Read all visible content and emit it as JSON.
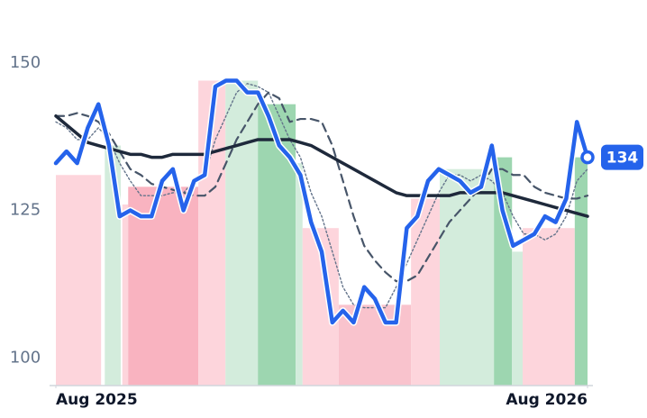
{
  "chart_data": {
    "type": "line",
    "x": [
      0,
      2,
      4,
      6,
      8,
      10,
      12,
      14,
      16,
      18,
      20,
      22,
      24,
      26,
      28,
      30,
      32,
      34,
      36,
      38,
      40,
      42,
      44,
      46,
      48,
      50,
      52,
      54,
      56,
      58,
      60,
      62,
      64,
      66,
      68,
      70,
      72,
      74,
      76,
      78,
      80,
      82,
      84,
      86,
      88,
      90,
      92,
      94,
      96,
      98,
      100
    ],
    "xlim": [
      0,
      100
    ],
    "xticks": [
      {
        "value": 0,
        "label": "Aug 2025"
      },
      {
        "value": 100,
        "label": "Aug 2026"
      }
    ],
    "ylim": [
      95,
      157
    ],
    "yticks": [
      100,
      125,
      150
    ],
    "series": [
      {
        "color": "#2563eb",
        "style": "solid",
        "values": [
          133,
          135,
          133,
          139,
          143,
          136,
          124,
          125,
          124,
          124,
          130,
          132,
          125,
          130,
          131,
          146,
          147,
          147,
          145,
          145,
          141,
          136,
          134,
          131,
          123,
          118,
          106,
          108,
          106,
          112,
          110,
          106,
          106,
          122,
          124,
          130,
          132,
          131,
          130,
          128,
          129,
          136,
          125,
          119,
          120,
          121,
          124,
          123,
          127,
          140,
          134
        ]
      },
      {
        "color": "#1e293b",
        "style": "thick",
        "values": [
          141,
          139.5,
          138,
          136.5,
          136,
          135.5,
          135,
          134.5,
          134.5,
          134,
          134,
          134.5,
          134.5,
          134.5,
          134.5,
          135,
          135.5,
          136,
          136.5,
          137,
          137,
          137,
          137,
          136.5,
          136,
          135,
          134,
          133,
          132,
          131,
          130,
          129,
          128,
          127.5,
          127.5,
          127.5,
          127.5,
          127.5,
          128,
          128,
          128,
          128,
          128,
          127.5,
          127,
          126.5,
          126,
          125.5,
          125,
          124.5,
          124
        ]
      },
      {
        "color": "#475569",
        "style": "dashed",
        "values": [
          141,
          141,
          141.5,
          141,
          140,
          138,
          135,
          132,
          131,
          129.5,
          129,
          128.5,
          128,
          127.5,
          127.5,
          129,
          133,
          137,
          140,
          143,
          145,
          144,
          140,
          140.5,
          140.5,
          140,
          136,
          130,
          124,
          119,
          116.5,
          114.5,
          113,
          113,
          114,
          117,
          120,
          123,
          125,
          127,
          129,
          132,
          132,
          131,
          131,
          129,
          128,
          127.5,
          127,
          127,
          127.5
        ]
      },
      {
        "color": "#64748b",
        "style": "dotted",
        "values": [
          140,
          139,
          137,
          137,
          139,
          137,
          133,
          130,
          127.5,
          127.5,
          127.5,
          128,
          128,
          130,
          131,
          137,
          141,
          145,
          146.5,
          146,
          145,
          141,
          137,
          134,
          128,
          124,
          118,
          112,
          109,
          108.5,
          108.5,
          108.5,
          112,
          116,
          120,
          124,
          128,
          131,
          131,
          130,
          131,
          130,
          128,
          124,
          121,
          121,
          120,
          121,
          124,
          130,
          132
        ]
      }
    ],
    "regions": [
      {
        "x": [
          0,
          8.5
        ],
        "value": 131,
        "color": "#fdd5dc"
      },
      {
        "x": [
          9.2,
          12.2
        ],
        "value": 136,
        "color": "#d3ecdc"
      },
      {
        "x": [
          12.5,
          13.6
        ],
        "value": 126,
        "color": "#fdd5dc"
      },
      {
        "x": [
          13.6,
          26.8
        ],
        "value": 129,
        "color": "#f9b3c0"
      },
      {
        "x": [
          26.8,
          31.9
        ],
        "value": 147,
        "color": "#fdd5dc"
      },
      {
        "x": [
          31.9,
          38
        ],
        "value": 147,
        "color": "#d3ecdc"
      },
      {
        "x": [
          38,
          45.1
        ],
        "value": 143,
        "color": "#9dd6b0"
      },
      {
        "x": [
          45.1,
          46.4
        ],
        "value": 133,
        "color": "#d3ecdc"
      },
      {
        "x": [
          46.4,
          53.2
        ],
        "value": 122,
        "color": "#fdd5dc"
      },
      {
        "x": [
          53.2,
          66.8
        ],
        "value": 109,
        "color": "#f9c3cd"
      },
      {
        "x": [
          66.8,
          72.2
        ],
        "value": 127,
        "color": "#fdd5dc"
      },
      {
        "x": [
          72.2,
          82.4
        ],
        "value": 132,
        "color": "#d3ecdc"
      },
      {
        "x": [
          82.4,
          85.8
        ],
        "value": 134,
        "color": "#9dd6b0"
      },
      {
        "x": [
          85.8,
          87.8
        ],
        "value": 118,
        "color": "#d3ecdc"
      },
      {
        "x": [
          87.8,
          97.6
        ],
        "value": 122,
        "color": "#fdd5dc"
      },
      {
        "x": [
          97.6,
          100
        ],
        "value": 134,
        "color": "#9dd6b0"
      }
    ]
  }
}
